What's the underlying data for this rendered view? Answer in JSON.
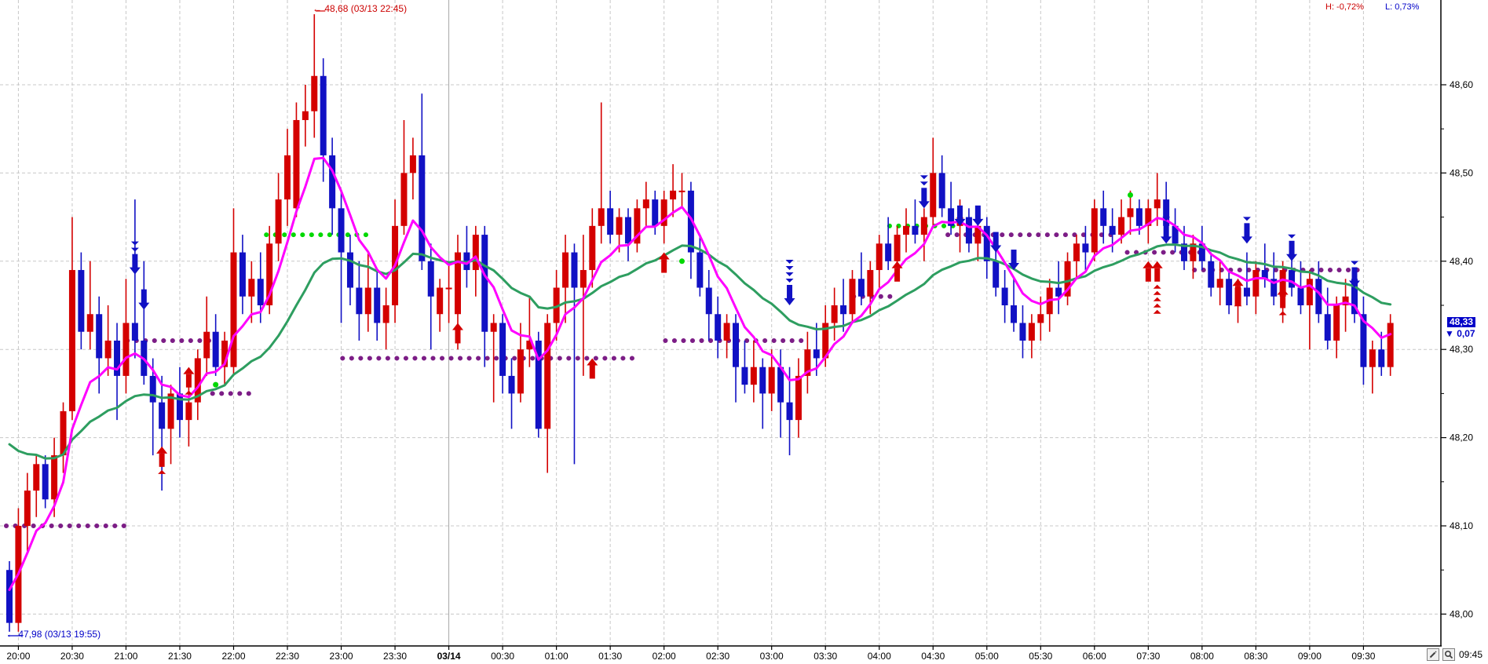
{
  "header": {
    "h_stat": "H: -0,72%",
    "l_stat": "L: 0,73%"
  },
  "annotations": {
    "high_arrow": "←",
    "high_text": "48,68 (03/13 22:45)",
    "low_arrow": "←",
    "low_text": "47,98 (03/13 19:55)"
  },
  "price_tag": {
    "price": "48,33",
    "change_arrow": "▼",
    "change": "0,07"
  },
  "footer": {
    "last_time": "09:45"
  },
  "chart_data": {
    "type": "candlestick",
    "interval_minutes": 5,
    "session_start": "03/13 19:55",
    "session_gap": {
      "after": "06:25",
      "resume": "07:30"
    },
    "ylim": [
      47.96,
      48.7
    ],
    "grid": true,
    "y_ticks": [
      {
        "p": 48.6,
        "t": "48,60"
      },
      {
        "p": 48.5,
        "t": "48,50"
      },
      {
        "p": 48.4,
        "t": "48,40"
      },
      {
        "p": 48.3,
        "t": "48,30"
      },
      {
        "p": 48.2,
        "t": "48,20"
      },
      {
        "p": 48.1,
        "t": "48,10"
      },
      {
        "p": 48.0,
        "t": "48,00"
      }
    ],
    "x_labels": [
      {
        "i": 1,
        "t": "20:00"
      },
      {
        "i": 7,
        "t": "20:30"
      },
      {
        "i": 13,
        "t": "21:00"
      },
      {
        "i": 19,
        "t": "21:30"
      },
      {
        "i": 25,
        "t": "22:00"
      },
      {
        "i": 31,
        "t": "22:30"
      },
      {
        "i": 37,
        "t": "23:00"
      },
      {
        "i": 43,
        "t": "23:30"
      },
      {
        "i": 49,
        "t": "03/14",
        "bold": true
      },
      {
        "i": 55,
        "t": "00:30"
      },
      {
        "i": 61,
        "t": "01:00"
      },
      {
        "i": 67,
        "t": "01:30"
      },
      {
        "i": 73,
        "t": "02:00"
      },
      {
        "i": 79,
        "t": "02:30"
      },
      {
        "i": 85,
        "t": "03:00"
      },
      {
        "i": 91,
        "t": "03:30"
      },
      {
        "i": 97,
        "t": "04:00"
      },
      {
        "i": 103,
        "t": "04:30"
      },
      {
        "i": 109,
        "t": "05:00"
      },
      {
        "i": 115,
        "t": "05:30"
      },
      {
        "i": 121,
        "t": "06:00"
      },
      {
        "i": 127,
        "t": "07:30"
      },
      {
        "i": 133,
        "t": "08:00"
      },
      {
        "i": 139,
        "t": "08:30"
      },
      {
        "i": 145,
        "t": "09:00"
      },
      {
        "i": 151,
        "t": "09:30"
      }
    ],
    "colors": {
      "up": "#d40000",
      "down": "#1111c4",
      "ma_fast": "#ff00ff",
      "ma_slow": "#2e9e60",
      "level_purple": "#7c1d86",
      "level_lime": "#00d800",
      "grid": "#c8c8c8",
      "grid_solid": "#a8a8a8",
      "axis": "#000000",
      "tag_bg": "#0000c8"
    },
    "ma_fast": {
      "period": 7,
      "seed": 48.04
    },
    "ma_slow": {
      "period": 24,
      "seed": 48.21
    },
    "candles": [
      [
        48.05,
        48.06,
        47.98,
        47.99
      ],
      [
        47.99,
        48.12,
        47.98,
        48.1
      ],
      [
        48.1,
        48.16,
        48.07,
        48.14
      ],
      [
        48.14,
        48.18,
        48.11,
        48.17
      ],
      [
        48.17,
        48.18,
        48.12,
        48.13
      ],
      [
        48.13,
        48.2,
        48.11,
        48.18
      ],
      [
        48.18,
        48.24,
        48.16,
        48.23
      ],
      [
        48.23,
        48.45,
        48.22,
        48.39
      ],
      [
        48.39,
        48.41,
        48.3,
        48.32
      ],
      [
        48.32,
        48.4,
        48.3,
        48.34
      ],
      [
        48.34,
        48.36,
        48.25,
        48.29
      ],
      [
        48.29,
        48.35,
        48.27,
        48.31
      ],
      [
        48.31,
        48.33,
        48.22,
        48.27
      ],
      [
        48.27,
        48.38,
        48.25,
        48.33
      ],
      [
        48.33,
        48.47,
        48.29,
        48.31
      ],
      [
        48.31,
        48.4,
        48.26,
        48.27
      ],
      [
        48.27,
        48.29,
        48.18,
        48.24
      ],
      [
        48.24,
        48.27,
        48.14,
        48.21
      ],
      [
        48.21,
        48.26,
        48.17,
        48.25
      ],
      [
        48.25,
        48.28,
        48.2,
        48.22
      ],
      [
        48.22,
        48.26,
        48.19,
        48.24
      ],
      [
        48.24,
        48.3,
        48.22,
        48.29
      ],
      [
        48.29,
        48.36,
        48.27,
        48.32
      ],
      [
        48.32,
        48.34,
        48.27,
        48.28
      ],
      [
        48.28,
        48.32,
        48.26,
        48.31
      ],
      [
        48.28,
        48.46,
        48.27,
        48.41
      ],
      [
        48.41,
        48.43,
        48.34,
        48.36
      ],
      [
        48.36,
        48.4,
        48.33,
        48.38
      ],
      [
        48.38,
        48.41,
        48.33,
        48.35
      ],
      [
        48.35,
        48.44,
        48.34,
        48.42
      ],
      [
        48.42,
        48.5,
        48.4,
        48.47
      ],
      [
        48.47,
        48.55,
        48.44,
        48.52
      ],
      [
        48.46,
        48.58,
        48.45,
        48.56
      ],
      [
        48.56,
        48.6,
        48.53,
        48.57
      ],
      [
        48.57,
        48.68,
        48.54,
        48.61
      ],
      [
        48.61,
        48.63,
        48.49,
        48.52
      ],
      [
        48.52,
        48.54,
        48.43,
        48.46
      ],
      [
        48.46,
        48.48,
        48.33,
        48.41
      ],
      [
        48.41,
        48.43,
        48.35,
        48.37
      ],
      [
        48.37,
        48.4,
        48.31,
        48.34
      ],
      [
        48.34,
        48.41,
        48.32,
        48.37
      ],
      [
        48.37,
        48.39,
        48.31,
        48.33
      ],
      [
        48.33,
        48.37,
        48.3,
        48.35
      ],
      [
        48.35,
        48.47,
        48.33,
        48.44
      ],
      [
        48.44,
        48.56,
        48.43,
        48.5
      ],
      [
        48.5,
        48.54,
        48.47,
        48.52
      ],
      [
        48.52,
        48.59,
        48.39,
        48.4
      ],
      [
        48.4,
        48.42,
        48.3,
        48.36
      ],
      [
        48.34,
        48.38,
        48.32,
        48.37
      ],
      [
        48.37,
        48.4,
        48.33,
        48.37
      ],
      [
        48.34,
        48.43,
        48.3,
        48.41
      ],
      [
        48.41,
        48.44,
        48.37,
        48.39
      ],
      [
        48.39,
        48.44,
        48.36,
        48.43
      ],
      [
        48.43,
        48.44,
        48.28,
        48.32
      ],
      [
        48.32,
        48.34,
        48.24,
        48.33
      ],
      [
        48.33,
        48.34,
        48.25,
        48.27
      ],
      [
        48.27,
        48.29,
        48.21,
        48.25
      ],
      [
        48.25,
        48.33,
        48.24,
        48.3
      ],
      [
        48.3,
        48.36,
        48.28,
        48.31
      ],
      [
        48.31,
        48.32,
        48.2,
        48.21
      ],
      [
        48.21,
        48.34,
        48.16,
        48.33
      ],
      [
        48.33,
        48.39,
        48.31,
        48.37
      ],
      [
        48.37,
        48.43,
        48.33,
        48.41
      ],
      [
        48.41,
        48.42,
        48.17,
        48.37
      ],
      [
        48.37,
        48.43,
        48.27,
        48.39
      ],
      [
        48.39,
        48.46,
        48.37,
        48.44
      ],
      [
        48.44,
        48.58,
        48.42,
        48.46
      ],
      [
        48.46,
        48.48,
        48.42,
        48.43
      ],
      [
        48.43,
        48.46,
        48.41,
        48.45
      ],
      [
        48.45,
        48.46,
        48.4,
        48.42
      ],
      [
        48.42,
        48.47,
        48.41,
        48.46
      ],
      [
        48.46,
        48.49,
        48.44,
        48.47
      ],
      [
        48.47,
        48.48,
        48.43,
        48.44
      ],
      [
        48.44,
        48.48,
        48.42,
        48.47
      ],
      [
        48.47,
        48.51,
        48.45,
        48.48
      ],
      [
        48.48,
        48.5,
        48.46,
        48.48
      ],
      [
        48.48,
        48.49,
        48.38,
        48.41
      ],
      [
        48.41,
        48.43,
        48.36,
        48.37
      ],
      [
        48.37,
        48.39,
        48.31,
        48.34
      ],
      [
        48.34,
        48.36,
        48.29,
        48.31
      ],
      [
        48.31,
        48.34,
        48.29,
        48.33
      ],
      [
        48.33,
        48.34,
        48.24,
        48.28
      ],
      [
        48.28,
        48.31,
        48.25,
        48.26
      ],
      [
        48.26,
        48.31,
        48.24,
        48.28
      ],
      [
        48.28,
        48.29,
        48.21,
        48.25
      ],
      [
        48.25,
        48.3,
        48.23,
        48.28
      ],
      [
        48.28,
        48.3,
        48.2,
        48.24
      ],
      [
        48.24,
        48.28,
        48.18,
        48.22
      ],
      [
        48.22,
        48.29,
        48.2,
        48.27
      ],
      [
        48.27,
        48.32,
        48.25,
        48.3
      ],
      [
        48.3,
        48.33,
        48.27,
        48.29
      ],
      [
        48.29,
        48.35,
        48.28,
        48.33
      ],
      [
        48.33,
        48.37,
        48.31,
        48.35
      ],
      [
        48.35,
        48.38,
        48.32,
        48.34
      ],
      [
        48.34,
        48.39,
        48.33,
        48.38
      ],
      [
        48.38,
        48.41,
        48.35,
        48.36
      ],
      [
        48.36,
        48.4,
        48.34,
        48.39
      ],
      [
        48.39,
        48.43,
        48.37,
        48.42
      ],
      [
        48.42,
        48.45,
        48.39,
        48.4
      ],
      [
        48.4,
        48.44,
        48.38,
        48.43
      ],
      [
        48.43,
        48.46,
        48.41,
        48.44
      ],
      [
        48.44,
        48.47,
        48.42,
        48.43
      ],
      [
        48.43,
        48.46,
        48.4,
        48.45
      ],
      [
        48.45,
        48.54,
        48.44,
        48.5
      ],
      [
        48.5,
        48.52,
        48.45,
        48.46
      ],
      [
        48.46,
        48.49,
        48.43,
        48.44
      ],
      [
        48.44,
        48.47,
        48.41,
        48.45
      ],
      [
        48.45,
        48.46,
        48.41,
        48.42
      ],
      [
        48.42,
        48.45,
        48.4,
        48.44
      ],
      [
        48.44,
        48.45,
        48.38,
        48.4
      ],
      [
        48.4,
        48.42,
        48.36,
        48.37
      ],
      [
        48.37,
        48.39,
        48.33,
        48.35
      ],
      [
        48.35,
        48.38,
        48.32,
        48.33
      ],
      [
        48.33,
        48.35,
        48.29,
        48.31
      ],
      [
        48.31,
        48.34,
        48.29,
        48.33
      ],
      [
        48.33,
        48.36,
        48.31,
        48.34
      ],
      [
        48.34,
        48.38,
        48.32,
        48.37
      ],
      [
        48.37,
        48.4,
        48.34,
        48.36
      ],
      [
        48.36,
        48.41,
        48.35,
        48.4
      ],
      [
        48.4,
        48.43,
        48.38,
        48.42
      ],
      [
        48.42,
        48.44,
        48.39,
        48.41
      ],
      [
        48.41,
        48.47,
        48.4,
        48.46
      ],
      [
        48.46,
        48.48,
        48.42,
        48.44
      ],
      [
        48.44,
        48.46,
        48.41,
        48.43
      ],
      [
        48.43,
        48.47,
        48.42,
        48.45
      ],
      [
        48.45,
        48.48,
        48.43,
        48.46
      ],
      [
        48.46,
        48.47,
        48.43,
        48.44
      ],
      [
        48.44,
        48.47,
        48.42,
        48.46
      ],
      [
        48.46,
        48.5,
        48.44,
        48.47
      ],
      [
        48.47,
        48.49,
        48.43,
        48.44
      ],
      [
        48.44,
        48.46,
        48.41,
        48.42
      ],
      [
        48.42,
        48.44,
        48.39,
        48.4
      ],
      [
        48.4,
        48.43,
        48.38,
        48.42
      ],
      [
        48.42,
        48.44,
        48.39,
        48.4
      ],
      [
        48.4,
        48.41,
        48.36,
        48.37
      ],
      [
        48.37,
        48.4,
        48.35,
        48.38
      ],
      [
        48.38,
        48.39,
        48.34,
        48.35
      ],
      [
        48.35,
        48.38,
        48.33,
        48.37
      ],
      [
        48.37,
        48.41,
        48.35,
        48.36
      ],
      [
        48.36,
        48.4,
        48.34,
        48.39
      ],
      [
        48.39,
        48.42,
        48.37,
        48.38
      ],
      [
        48.38,
        48.41,
        48.35,
        48.36
      ],
      [
        48.36,
        48.4,
        48.33,
        48.39
      ],
      [
        48.39,
        48.42,
        48.36,
        48.37
      ],
      [
        48.37,
        48.4,
        48.34,
        48.35
      ],
      [
        48.35,
        48.39,
        48.3,
        48.38
      ],
      [
        48.38,
        48.4,
        48.33,
        48.34
      ],
      [
        48.34,
        48.37,
        48.3,
        48.31
      ],
      [
        48.31,
        48.36,
        48.29,
        48.35
      ],
      [
        48.35,
        48.38,
        48.32,
        48.36
      ],
      [
        48.38,
        48.39,
        48.33,
        48.34
      ],
      [
        48.34,
        48.36,
        48.26,
        48.28
      ],
      [
        48.28,
        48.31,
        48.25,
        48.3
      ],
      [
        48.3,
        48.32,
        48.27,
        48.28
      ],
      [
        48.28,
        48.34,
        48.27,
        48.33
      ]
    ],
    "levels": [
      {
        "a": 0,
        "b": 13,
        "p": 48.1,
        "c": "purple"
      },
      {
        "a": 13.5,
        "b": 22,
        "p": 48.31,
        "c": "purple"
      },
      {
        "a": 23,
        "b": 27,
        "p": 48.25,
        "c": "purple"
      },
      {
        "a": 37.5,
        "b": 70,
        "p": 48.29,
        "c": "purple"
      },
      {
        "a": 73.5,
        "b": 88.5,
        "p": 48.31,
        "c": "purple"
      },
      {
        "a": 94.5,
        "b": 98,
        "p": 48.36,
        "c": "purple"
      },
      {
        "a": 105,
        "b": 123,
        "p": 48.43,
        "c": "purple"
      },
      {
        "a": 125,
        "b": 132.5,
        "p": 48.41,
        "c": "purple"
      },
      {
        "a": 132.5,
        "b": 150.5,
        "p": 48.39,
        "c": "purple"
      },
      {
        "a": 29,
        "b": 40,
        "p": 48.43,
        "c": "lime"
      },
      {
        "a": 98.5,
        "b": 105,
        "p": 48.44,
        "c": "lime"
      }
    ],
    "dots": [
      {
        "i": 23,
        "p": 48.26
      },
      {
        "i": 75,
        "p": 48.4
      },
      {
        "i": 125,
        "p": 48.475
      }
    ],
    "signals_down": [
      {
        "i": 14,
        "p": 48.385,
        "chev": 2
      },
      {
        "i": 15,
        "p": 48.345,
        "chev": 0
      },
      {
        "i": 87,
        "p": 48.35,
        "chev": 4
      },
      {
        "i": 102,
        "p": 48.46,
        "chev": 2
      },
      {
        "i": 106,
        "p": 48.44,
        "chev": 0
      },
      {
        "i": 108,
        "p": 48.44,
        "chev": 0
      },
      {
        "i": 110,
        "p": 48.41,
        "chev": 0
      },
      {
        "i": 112,
        "p": 48.39,
        "chev": 0
      },
      {
        "i": 129,
        "p": 48.42,
        "chev": 1
      },
      {
        "i": 138,
        "p": 48.42,
        "chev": 1
      },
      {
        "i": 143,
        "p": 48.4,
        "chev": 1
      },
      {
        "i": 150,
        "p": 48.37,
        "chev": 1
      }
    ],
    "signals_up": [
      {
        "i": 17,
        "p": 48.19,
        "chev": 1
      },
      {
        "i": 20,
        "p": 48.28,
        "chev": 1
      },
      {
        "i": 50,
        "p": 48.33,
        "chev": 0
      },
      {
        "i": 65,
        "p": 48.29,
        "chev": 0
      },
      {
        "i": 73,
        "p": 48.41,
        "chev": 0
      },
      {
        "i": 99,
        "p": 48.4,
        "chev": 0
      },
      {
        "i": 127,
        "p": 48.4,
        "chev": 0
      },
      {
        "i": 128,
        "p": 48.4,
        "chev": 5
      },
      {
        "i": 137,
        "p": 48.38,
        "chev": 1
      },
      {
        "i": 142,
        "p": 48.37,
        "chev": 1
      }
    ]
  }
}
